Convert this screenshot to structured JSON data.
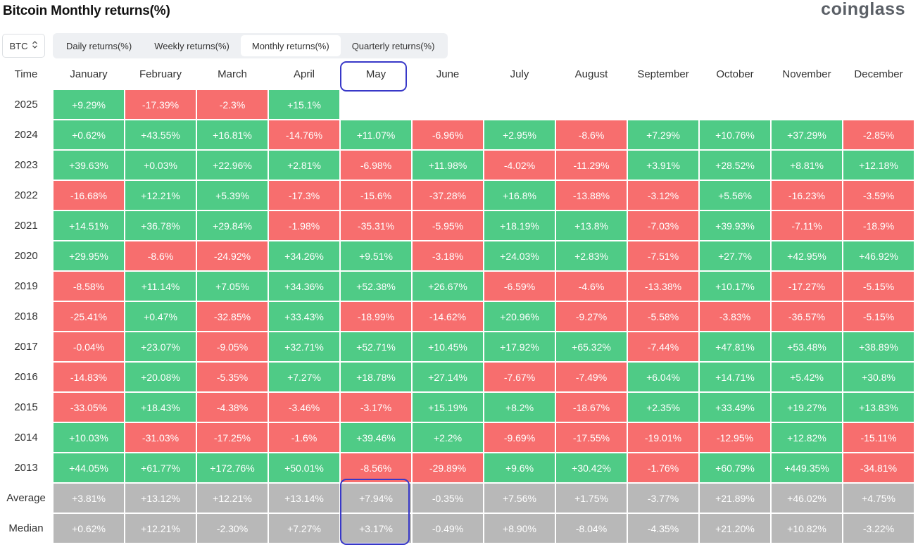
{
  "title": "Bitcoin Monthly returns(%)",
  "brand": "coinglass",
  "asset": {
    "value": "BTC",
    "icon": "chevron-updown-icon"
  },
  "tabs": [
    {
      "label": "Daily returns(%)",
      "active": false
    },
    {
      "label": "Weekly returns(%)",
      "active": false
    },
    {
      "label": "Monthly returns(%)",
      "active": true
    },
    {
      "label": "Quarterly returns(%)",
      "active": false
    }
  ],
  "colors": {
    "positive": "#4fcb86",
    "negative": "#f76e6e",
    "summary": "#b8b8b8",
    "highlight": "#3838c8"
  },
  "chart_data": {
    "type": "heatmap",
    "title": "Bitcoin Monthly returns(%)",
    "corner_label": "Time",
    "columns": [
      "January",
      "February",
      "March",
      "April",
      "May",
      "June",
      "July",
      "August",
      "September",
      "October",
      "November",
      "December"
    ],
    "highlighted_column": "May",
    "rows": [
      {
        "label": "2025",
        "values": [
          "+9.29%",
          "-17.39%",
          "-2.3%",
          "+15.1%"
        ]
      },
      {
        "label": "2024",
        "values": [
          "+0.62%",
          "+43.55%",
          "+16.81%",
          "-14.76%",
          "+11.07%",
          "-6.96%",
          "+2.95%",
          "-8.6%",
          "+7.29%",
          "+10.76%",
          "+37.29%",
          "-2.85%"
        ]
      },
      {
        "label": "2023",
        "values": [
          "+39.63%",
          "+0.03%",
          "+22.96%",
          "+2.81%",
          "-6.98%",
          "+11.98%",
          "-4.02%",
          "-11.29%",
          "+3.91%",
          "+28.52%",
          "+8.81%",
          "+12.18%"
        ]
      },
      {
        "label": "2022",
        "values": [
          "-16.68%",
          "+12.21%",
          "+5.39%",
          "-17.3%",
          "-15.6%",
          "-37.28%",
          "+16.8%",
          "-13.88%",
          "-3.12%",
          "+5.56%",
          "-16.23%",
          "-3.59%"
        ]
      },
      {
        "label": "2021",
        "values": [
          "+14.51%",
          "+36.78%",
          "+29.84%",
          "-1.98%",
          "-35.31%",
          "-5.95%",
          "+18.19%",
          "+13.8%",
          "-7.03%",
          "+39.93%",
          "-7.11%",
          "-18.9%"
        ]
      },
      {
        "label": "2020",
        "values": [
          "+29.95%",
          "-8.6%",
          "-24.92%",
          "+34.26%",
          "+9.51%",
          "-3.18%",
          "+24.03%",
          "+2.83%",
          "-7.51%",
          "+27.7%",
          "+42.95%",
          "+46.92%"
        ]
      },
      {
        "label": "2019",
        "values": [
          "-8.58%",
          "+11.14%",
          "+7.05%",
          "+34.36%",
          "+52.38%",
          "+26.67%",
          "-6.59%",
          "-4.6%",
          "-13.38%",
          "+10.17%",
          "-17.27%",
          "-5.15%"
        ]
      },
      {
        "label": "2018",
        "values": [
          "-25.41%",
          "+0.47%",
          "-32.85%",
          "+33.43%",
          "-18.99%",
          "-14.62%",
          "+20.96%",
          "-9.27%",
          "-5.58%",
          "-3.83%",
          "-36.57%",
          "-5.15%"
        ]
      },
      {
        "label": "2017",
        "values": [
          "-0.04%",
          "+23.07%",
          "-9.05%",
          "+32.71%",
          "+52.71%",
          "+10.45%",
          "+17.92%",
          "+65.32%",
          "-7.44%",
          "+47.81%",
          "+53.48%",
          "+38.89%"
        ]
      },
      {
        "label": "2016",
        "values": [
          "-14.83%",
          "+20.08%",
          "-5.35%",
          "+7.27%",
          "+18.78%",
          "+27.14%",
          "-7.67%",
          "-7.49%",
          "+6.04%",
          "+14.71%",
          "+5.42%",
          "+30.8%"
        ]
      },
      {
        "label": "2015",
        "values": [
          "-33.05%",
          "+18.43%",
          "-4.38%",
          "-3.46%",
          "-3.17%",
          "+15.19%",
          "+8.2%",
          "-18.67%",
          "+2.35%",
          "+33.49%",
          "+19.27%",
          "+13.83%"
        ]
      },
      {
        "label": "2014",
        "values": [
          "+10.03%",
          "-31.03%",
          "-17.25%",
          "-1.6%",
          "+39.46%",
          "+2.2%",
          "-9.69%",
          "-17.55%",
          "-19.01%",
          "-12.95%",
          "+12.82%",
          "-15.11%"
        ]
      },
      {
        "label": "2013",
        "values": [
          "+44.05%",
          "+61.77%",
          "+172.76%",
          "+50.01%",
          "-8.56%",
          "-29.89%",
          "+9.6%",
          "+30.42%",
          "-1.76%",
          "+60.79%",
          "+449.35%",
          "-34.81%"
        ]
      }
    ],
    "summary_rows": [
      {
        "label": "Average",
        "values": [
          "+3.81%",
          "+13.12%",
          "+12.21%",
          "+13.14%",
          "+7.94%",
          "-0.35%",
          "+7.56%",
          "+1.75%",
          "-3.77%",
          "+21.89%",
          "+46.02%",
          "+4.75%"
        ]
      },
      {
        "label": "Median",
        "values": [
          "+0.62%",
          "+12.21%",
          "-2.30%",
          "+7.27%",
          "+3.17%",
          "-0.49%",
          "+8.90%",
          "-8.04%",
          "-4.35%",
          "+21.20%",
          "+10.82%",
          "-3.22%"
        ]
      }
    ]
  }
}
